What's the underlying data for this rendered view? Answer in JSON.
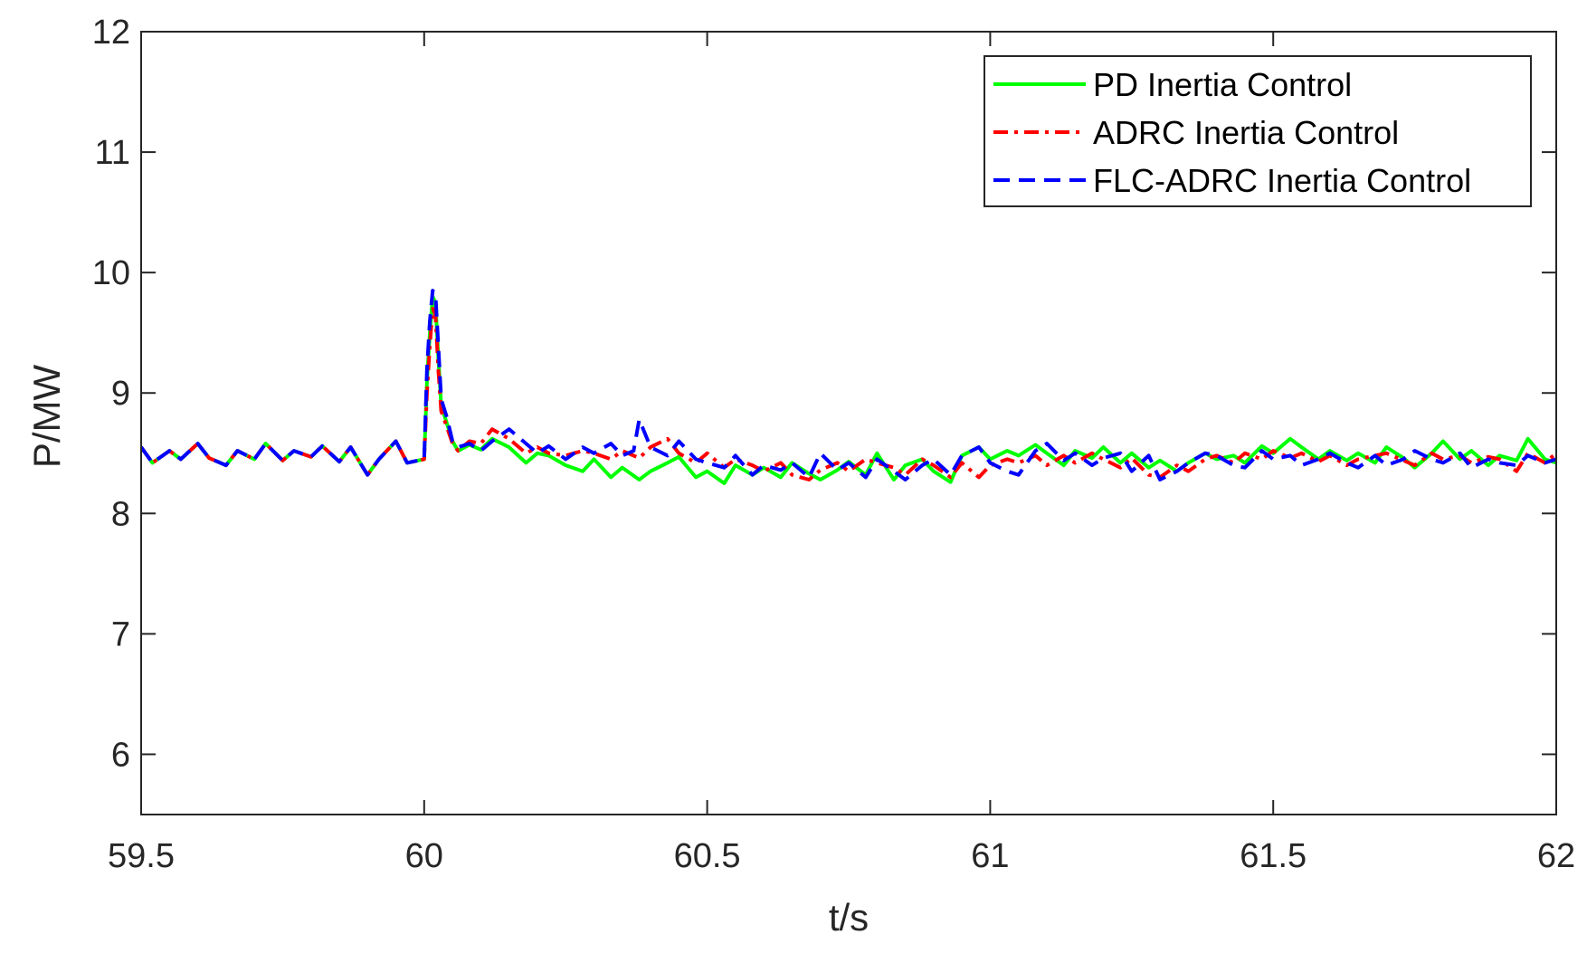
{
  "chart_data": {
    "type": "line",
    "title": "",
    "xlabel": "t/s",
    "ylabel": "P/MW",
    "xlim": [
      59.5,
      62
    ],
    "ylim": [
      5.5,
      12
    ],
    "xticks": [
      59.5,
      60,
      60.5,
      61,
      61.5,
      62
    ],
    "xtick_labels": [
      "59.5",
      "60",
      "60.5",
      "61",
      "61.5",
      "62"
    ],
    "yticks": [
      6,
      7,
      8,
      9,
      10,
      11,
      12
    ],
    "ytick_labels": [
      "6",
      "7",
      "8",
      "9",
      "10",
      "11",
      "12"
    ],
    "grid": false,
    "legend_position": "top-right",
    "series": [
      {
        "name": "PD Inertia Control",
        "color": "#00ff00",
        "dash": "solid",
        "x": [
          59.5,
          59.52,
          59.55,
          59.57,
          59.6,
          59.62,
          59.65,
          59.67,
          59.7,
          59.72,
          59.75,
          59.77,
          59.8,
          59.82,
          59.85,
          59.87,
          59.9,
          59.92,
          59.95,
          59.97,
          60.0,
          60.005,
          60.01,
          60.015,
          60.02,
          60.025,
          60.03,
          60.04,
          60.05,
          60.06,
          60.08,
          60.1,
          60.12,
          60.15,
          60.18,
          60.2,
          60.22,
          60.25,
          60.28,
          60.3,
          60.33,
          60.35,
          60.38,
          60.4,
          60.43,
          60.45,
          60.48,
          60.5,
          60.53,
          60.55,
          60.58,
          60.6,
          60.63,
          60.65,
          60.68,
          60.7,
          60.73,
          60.75,
          60.78,
          60.8,
          60.83,
          60.85,
          60.88,
          60.9,
          60.93,
          60.95,
          60.98,
          61.0,
          61.03,
          61.05,
          61.08,
          61.1,
          61.13,
          61.15,
          61.18,
          61.2,
          61.23,
          61.25,
          61.28,
          61.3,
          61.33,
          61.35,
          61.38,
          61.4,
          61.43,
          61.45,
          61.48,
          61.5,
          61.53,
          61.55,
          61.58,
          61.6,
          61.63,
          61.65,
          61.68,
          61.7,
          61.73,
          61.75,
          61.78,
          61.8,
          61.83,
          61.85,
          61.88,
          61.9,
          61.93,
          61.95,
          61.98,
          62.0
        ],
        "y": [
          8.55,
          8.42,
          8.52,
          8.45,
          8.58,
          8.46,
          8.4,
          8.52,
          8.45,
          8.58,
          8.44,
          8.52,
          8.47,
          8.56,
          8.43,
          8.55,
          8.32,
          8.45,
          8.6,
          8.42,
          8.45,
          9.1,
          9.5,
          9.8,
          9.75,
          9.3,
          8.9,
          8.75,
          8.6,
          8.52,
          8.57,
          8.53,
          8.62,
          8.55,
          8.42,
          8.5,
          8.48,
          8.4,
          8.35,
          8.45,
          8.3,
          8.38,
          8.28,
          8.35,
          8.42,
          8.47,
          8.3,
          8.35,
          8.25,
          8.4,
          8.32,
          8.38,
          8.3,
          8.42,
          8.33,
          8.28,
          8.36,
          8.43,
          8.32,
          8.5,
          8.28,
          8.4,
          8.45,
          8.35,
          8.26,
          8.48,
          8.55,
          8.45,
          8.52,
          8.48,
          8.57,
          8.5,
          8.4,
          8.52,
          8.46,
          8.55,
          8.42,
          8.5,
          8.38,
          8.44,
          8.35,
          8.42,
          8.5,
          8.45,
          8.48,
          8.42,
          8.56,
          8.5,
          8.62,
          8.55,
          8.45,
          8.52,
          8.44,
          8.5,
          8.42,
          8.55,
          8.46,
          8.38,
          8.5,
          8.6,
          8.45,
          8.52,
          8.4,
          8.48,
          8.44,
          8.62,
          8.45,
          8.42
        ]
      },
      {
        "name": "ADRC Inertia Control",
        "color": "#ff0000",
        "dash": "dashdot",
        "x": [
          59.5,
          59.52,
          59.55,
          59.57,
          59.6,
          59.62,
          59.65,
          59.67,
          59.7,
          59.72,
          59.75,
          59.77,
          59.8,
          59.82,
          59.85,
          59.87,
          59.9,
          59.92,
          59.95,
          59.97,
          60.0,
          60.005,
          60.01,
          60.015,
          60.02,
          60.025,
          60.03,
          60.04,
          60.05,
          60.06,
          60.08,
          60.1,
          60.12,
          60.15,
          60.18,
          60.2,
          60.22,
          60.25,
          60.28,
          60.3,
          60.33,
          60.35,
          60.38,
          60.4,
          60.43,
          60.45,
          60.48,
          60.5,
          60.53,
          60.55,
          60.58,
          60.6,
          60.63,
          60.65,
          60.68,
          60.7,
          60.73,
          60.75,
          60.78,
          60.8,
          60.83,
          60.85,
          60.88,
          60.9,
          60.93,
          60.95,
          60.98,
          61.0,
          61.03,
          61.05,
          61.08,
          61.1,
          61.13,
          61.15,
          61.18,
          61.2,
          61.23,
          61.25,
          61.28,
          61.3,
          61.33,
          61.35,
          61.38,
          61.4,
          61.43,
          61.45,
          61.48,
          61.5,
          61.53,
          61.55,
          61.58,
          61.6,
          61.63,
          61.65,
          61.68,
          61.7,
          61.73,
          61.75,
          61.78,
          61.8,
          61.83,
          61.85,
          61.88,
          61.9,
          61.93,
          61.95,
          61.98,
          62.0
        ],
        "y": [
          8.55,
          8.42,
          8.52,
          8.45,
          8.58,
          8.46,
          8.4,
          8.52,
          8.45,
          8.58,
          8.44,
          8.52,
          8.47,
          8.56,
          8.43,
          8.55,
          8.32,
          8.45,
          8.6,
          8.42,
          8.45,
          9.0,
          9.4,
          9.7,
          9.65,
          9.2,
          8.85,
          8.72,
          8.58,
          8.52,
          8.6,
          8.58,
          8.7,
          8.62,
          8.5,
          8.55,
          8.5,
          8.48,
          8.52,
          8.5,
          8.45,
          8.52,
          8.46,
          8.55,
          8.62,
          8.5,
          8.42,
          8.5,
          8.38,
          8.45,
          8.4,
          8.35,
          8.42,
          8.32,
          8.28,
          8.36,
          8.42,
          8.35,
          8.45,
          8.42,
          8.38,
          8.32,
          8.45,
          8.4,
          8.3,
          8.42,
          8.3,
          8.4,
          8.45,
          8.42,
          8.48,
          8.4,
          8.48,
          8.42,
          8.5,
          8.45,
          8.38,
          8.46,
          8.32,
          8.3,
          8.4,
          8.35,
          8.45,
          8.48,
          8.42,
          8.5,
          8.45,
          8.52,
          8.46,
          8.5,
          8.43,
          8.48,
          8.4,
          8.45,
          8.48,
          8.5,
          8.44,
          8.4,
          8.5,
          8.45,
          8.48,
          8.42,
          8.47,
          8.45,
          8.35,
          8.5,
          8.42,
          8.5
        ]
      },
      {
        "name": "FLC-ADRC Inertia Control",
        "color": "#0000ff",
        "dash": "dashed",
        "x": [
          59.5,
          59.52,
          59.55,
          59.57,
          59.6,
          59.62,
          59.65,
          59.67,
          59.7,
          59.72,
          59.75,
          59.77,
          59.8,
          59.82,
          59.85,
          59.87,
          59.9,
          59.92,
          59.95,
          59.97,
          60.0,
          60.005,
          60.01,
          60.015,
          60.02,
          60.025,
          60.03,
          60.04,
          60.05,
          60.06,
          60.08,
          60.1,
          60.12,
          60.15,
          60.18,
          60.2,
          60.22,
          60.25,
          60.28,
          60.3,
          60.33,
          60.35,
          60.37,
          60.38,
          60.4,
          60.43,
          60.45,
          60.48,
          60.5,
          60.53,
          60.55,
          60.58,
          60.6,
          60.63,
          60.65,
          60.68,
          60.7,
          60.73,
          60.75,
          60.78,
          60.8,
          60.83,
          60.85,
          60.88,
          60.9,
          60.93,
          60.95,
          60.98,
          61.0,
          61.03,
          61.05,
          61.08,
          61.1,
          61.13,
          61.15,
          61.18,
          61.2,
          61.23,
          61.25,
          61.28,
          61.3,
          61.33,
          61.35,
          61.38,
          61.4,
          61.43,
          61.45,
          61.48,
          61.5,
          61.53,
          61.55,
          61.58,
          61.6,
          61.63,
          61.65,
          61.68,
          61.7,
          61.73,
          61.75,
          61.78,
          61.8,
          61.83,
          61.85,
          61.88,
          61.9,
          61.93,
          61.95,
          61.98,
          62.0
        ],
        "y": [
          8.55,
          8.42,
          8.52,
          8.45,
          8.58,
          8.46,
          8.4,
          8.52,
          8.45,
          8.58,
          8.44,
          8.52,
          8.47,
          8.56,
          8.43,
          8.55,
          8.32,
          8.45,
          8.6,
          8.42,
          8.45,
          9.2,
          9.6,
          9.85,
          9.82,
          9.4,
          8.95,
          8.8,
          8.6,
          8.55,
          8.58,
          8.52,
          8.6,
          8.7,
          8.58,
          8.5,
          8.56,
          8.45,
          8.55,
          8.5,
          8.58,
          8.48,
          8.52,
          8.78,
          8.55,
          8.48,
          8.6,
          8.45,
          8.42,
          8.38,
          8.48,
          8.32,
          8.4,
          8.36,
          8.42,
          8.3,
          8.5,
          8.36,
          8.42,
          8.3,
          8.45,
          8.35,
          8.28,
          8.4,
          8.45,
          8.32,
          8.48,
          8.55,
          8.42,
          8.35,
          8.32,
          8.52,
          8.58,
          8.44,
          8.5,
          8.4,
          8.46,
          8.5,
          8.35,
          8.48,
          8.28,
          8.35,
          8.42,
          8.5,
          8.48,
          8.4,
          8.38,
          8.52,
          8.45,
          8.48,
          8.4,
          8.45,
          8.5,
          8.42,
          8.38,
          8.48,
          8.4,
          8.45,
          8.52,
          8.45,
          8.42,
          8.5,
          8.38,
          8.45,
          8.42,
          8.4,
          8.48,
          8.42,
          8.45
        ]
      }
    ]
  }
}
